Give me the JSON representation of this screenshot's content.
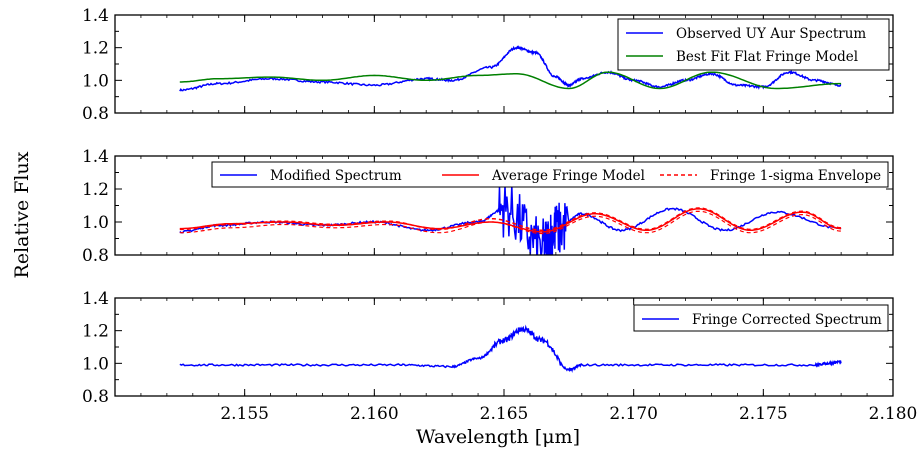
{
  "chart_data": {
    "type": "line",
    "shared_ylabel": "Relative Flux",
    "shared_xlabel": "Wavelength [μm]",
    "xlim": [
      2.15,
      2.18
    ],
    "x_ticks": [
      "2.155",
      "2.160",
      "2.165",
      "2.170",
      "2.175",
      "2.180"
    ],
    "x_tick_values": [
      2.155,
      2.16,
      2.165,
      2.17,
      2.175,
      2.18
    ],
    "panels": [
      {
        "ylim": [
          0.8,
          1.4
        ],
        "y_ticks": [
          "0.8",
          "1.0",
          "1.2",
          "1.4"
        ],
        "legend_position": "top-right",
        "colors": {
          "observed": "#0000ff",
          "model": "#008000"
        },
        "series": [
          {
            "name": "Observed UY Aur Spectrum",
            "color": "#0000ff",
            "style": "solid",
            "x": [
              2.1525,
              2.154,
              2.156,
              2.158,
              2.16,
              2.162,
              2.163,
              2.1645,
              2.1655,
              2.1662,
              2.167,
              2.1675,
              2.168,
              2.169,
              2.17,
              2.171,
              2.172,
              2.173,
              2.174,
              2.175,
              2.176,
              2.177,
              2.178
            ],
            "y": [
              0.94,
              0.98,
              1.01,
              0.99,
              0.97,
              1.01,
              1.0,
              1.08,
              1.2,
              1.17,
              1.02,
              0.97,
              1.01,
              1.05,
              1.0,
              0.96,
              1.0,
              1.04,
              0.97,
              0.96,
              1.05,
              1.0,
              0.97
            ]
          },
          {
            "name": "Best Fit Flat Fringe Model",
            "color": "#008000",
            "style": "solid",
            "x": [
              2.1525,
              2.154,
              2.156,
              2.158,
              2.16,
              2.162,
              2.164,
              2.1655,
              2.1675,
              2.169,
              2.171,
              2.173,
              2.1755,
              2.178
            ],
            "y": [
              0.99,
              1.01,
              1.02,
              1.0,
              1.03,
              1.0,
              1.03,
              1.04,
              0.95,
              1.05,
              0.95,
              1.05,
              0.95,
              0.98
            ]
          }
        ]
      },
      {
        "ylim": [
          0.8,
          1.4
        ],
        "y_ticks": [
          "0.8",
          "1.0",
          "1.2",
          "1.4"
        ],
        "legend_position": "top",
        "series": [
          {
            "name": "Modified Spectrum",
            "color": "#0000ff",
            "style": "solid",
            "x": [
              2.1525,
              2.154,
              2.156,
              2.158,
              2.16,
              2.162,
              2.164,
              2.165,
              2.1665,
              2.167,
              2.168,
              2.1695,
              2.1715,
              2.1735,
              2.1755,
              2.178
            ],
            "y": [
              0.94,
              0.98,
              1.0,
              0.98,
              1.0,
              0.95,
              1.0,
              1.08,
              0.85,
              0.95,
              1.05,
              0.95,
              1.08,
              0.95,
              1.06,
              0.96
            ]
          },
          {
            "name": "Average Fringe Model",
            "color": "#ff0000",
            "style": "solid",
            "x": [
              2.1525,
              2.1545,
              2.1565,
              2.1585,
              2.1605,
              2.1625,
              2.1645,
              2.1665,
              2.1685,
              2.1705,
              2.1725,
              2.1745,
              2.1765,
              2.178
            ],
            "y": [
              0.96,
              0.99,
              1.0,
              0.98,
              1.0,
              0.96,
              1.0,
              0.94,
              1.05,
              0.95,
              1.08,
              0.95,
              1.06,
              0.96
            ]
          },
          {
            "name": "Fringe 1-sigma Envelope",
            "color": "#ff0000",
            "style": "dashed",
            "x": [
              2.1525,
              2.1545,
              2.1565,
              2.1585,
              2.1605,
              2.1625,
              2.1645,
              2.1665,
              2.1685,
              2.1705,
              2.1725,
              2.1745,
              2.1765,
              2.178
            ],
            "y": [
              0.955,
              0.985,
              1.005,
              0.985,
              1.005,
              0.955,
              1.02,
              0.95,
              1.055,
              0.955,
              1.085,
              0.955,
              1.065,
              0.965
            ]
          }
        ]
      },
      {
        "ylim": [
          0.8,
          1.4
        ],
        "y_ticks": [
          "0.8",
          "1.0",
          "1.2",
          "1.4"
        ],
        "legend_position": "top-right",
        "series": [
          {
            "name": "Fringe Corrected Spectrum",
            "color": "#0000ff",
            "style": "solid",
            "x": [
              2.1525,
              2.155,
              2.158,
              2.161,
              2.163,
              2.164,
              2.165,
              2.1657,
              2.1665,
              2.1675,
              2.168,
              2.171,
              2.174,
              2.177,
              2.1775,
              2.178
            ],
            "y": [
              0.99,
              0.99,
              0.99,
              0.99,
              0.98,
              1.03,
              1.14,
              1.21,
              1.14,
              0.96,
              0.99,
              0.99,
              0.99,
              0.99,
              1.0,
              1.01
            ]
          }
        ]
      }
    ]
  }
}
